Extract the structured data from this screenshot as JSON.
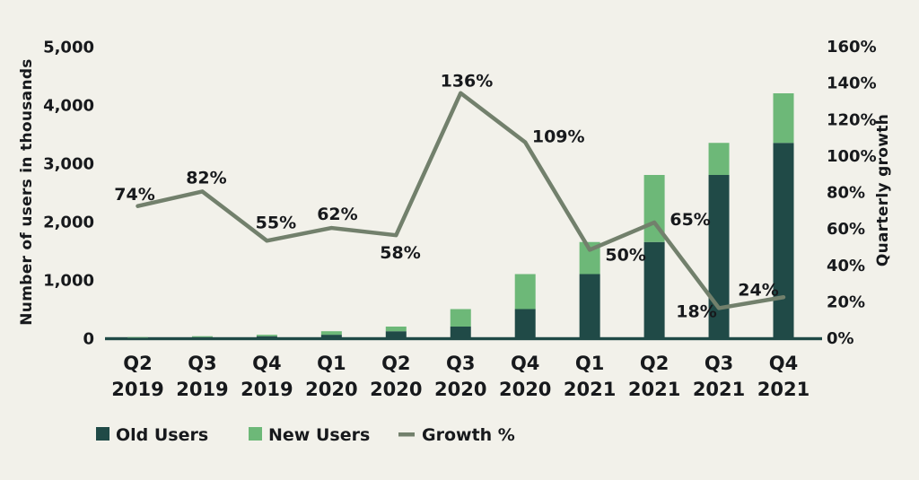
{
  "chart_data": {
    "type": "bar+line combo (stacked bars, secondary-axis line)",
    "title": "",
    "categories": [
      {
        "quarter": "Q2",
        "year": "2019"
      },
      {
        "quarter": "Q3",
        "year": "2019"
      },
      {
        "quarter": "Q4",
        "year": "2019"
      },
      {
        "quarter": "Q1",
        "year": "2020"
      },
      {
        "quarter": "Q2",
        "year": "2020"
      },
      {
        "quarter": "Q3",
        "year": "2020"
      },
      {
        "quarter": "Q4",
        "year": "2020"
      },
      {
        "quarter": "Q1",
        "year": "2021"
      },
      {
        "quarter": "Q2",
        "year": "2021"
      },
      {
        "quarter": "Q3",
        "year": "2021"
      },
      {
        "quarter": "Q4",
        "year": "2021"
      }
    ],
    "series": [
      {
        "name": "Old Users",
        "type": "bar",
        "stack": "users",
        "color": "#204a47",
        "values": [
          10,
          20,
          35,
          60,
          120,
          200,
          500,
          1100,
          1650,
          2800,
          3350
        ]
      },
      {
        "name": "New Users",
        "type": "bar",
        "stack": "users",
        "color": "#6db878",
        "values": [
          10,
          15,
          25,
          60,
          80,
          300,
          600,
          550,
          1150,
          550,
          850
        ]
      },
      {
        "name": "Growth %",
        "type": "line",
        "axis": "right",
        "color": "#72806c",
        "values": [
          74,
          82,
          55,
          62,
          58,
          136,
          109,
          50,
          65,
          18,
          24
        ],
        "labels": [
          "74%",
          "82%",
          "55%",
          "62%",
          "58%",
          "136%",
          "109%",
          "50%",
          "65%",
          "18%",
          "24%"
        ]
      }
    ],
    "left_axis": {
      "label": "Number of users in thousands",
      "min": 0,
      "max": 5000,
      "tick_step": 1000,
      "ticks": [
        "5,000",
        "4,000",
        "3,000",
        "2,000",
        "1,000",
        "0"
      ]
    },
    "right_axis": {
      "label": "Quarterly growth",
      "min": 0,
      "max": 160,
      "tick_step": 20,
      "ticks": [
        "160%",
        "140%",
        "120%",
        "100%",
        "80%",
        "60%",
        "40%",
        "20%",
        "0%"
      ]
    },
    "legend": {
      "position": "bottom-left",
      "items": [
        {
          "label": "Old Users",
          "marker": "square",
          "color": "#204a47"
        },
        {
          "label": "New Users",
          "marker": "square",
          "color": "#6db878"
        },
        {
          "label": "Growth %",
          "marker": "line",
          "color": "#72806c"
        }
      ]
    },
    "grid": false,
    "background": "#f2f1ea",
    "text_color": "#17191c"
  }
}
